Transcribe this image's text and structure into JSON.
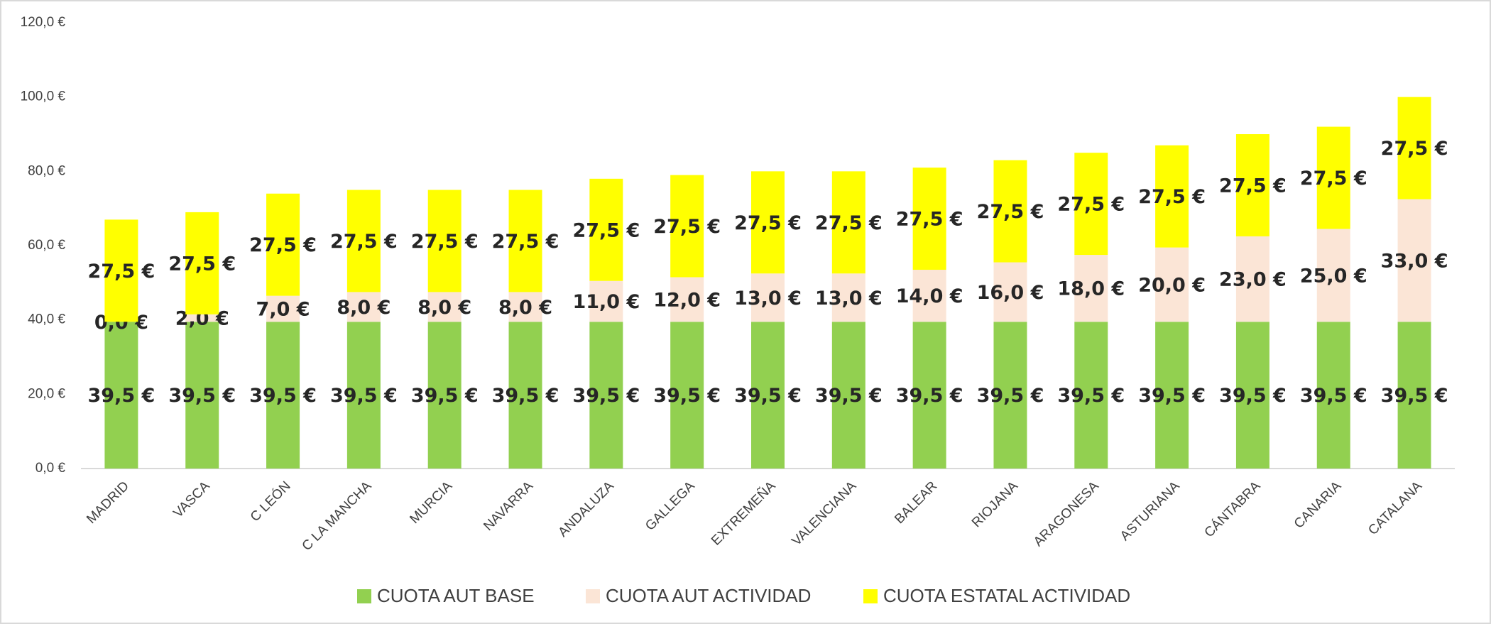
{
  "chart_data": {
    "type": "stacked_bar",
    "categories": [
      "MADRID",
      "VASCA",
      "C LEÓN",
      "C LA MANCHA",
      "MURCIA",
      "NAVARRA",
      "ANDALUZA",
      "GALLEGA",
      "EXTREMEÑA",
      "VALENCIANA",
      "BALEAR",
      "RIOJANA",
      "ARAGONESA",
      "ASTURIANA",
      "CÁNTABRA",
      "CANARIA",
      "CATALANA"
    ],
    "series": [
      {
        "name": "CUOTA AUT BASE",
        "color": "#92d050",
        "values": [
          39.5,
          39.5,
          39.5,
          39.5,
          39.5,
          39.5,
          39.5,
          39.5,
          39.5,
          39.5,
          39.5,
          39.5,
          39.5,
          39.5,
          39.5,
          39.5,
          39.5
        ],
        "value_labels": [
          "39,5 €",
          "39,5 €",
          "39,5 €",
          "39,5 €",
          "39,5 €",
          "39,5 €",
          "39,5 €",
          "39,5 €",
          "39,5 €",
          "39,5 €",
          "39,5 €",
          "39,5 €",
          "39,5 €",
          "39,5 €",
          "39,5 €",
          "39,5 €",
          "39,5 €"
        ]
      },
      {
        "name": "CUOTA AUT ACTIVIDAD",
        "color": "#fbe5d6",
        "values": [
          0,
          2,
          7,
          8,
          8,
          8,
          11,
          12,
          13,
          13,
          14,
          16,
          18,
          20,
          23,
          25,
          33
        ],
        "value_labels": [
          "0,0 €",
          "2,0 €",
          "7,0 €",
          "8,0 €",
          "8,0 €",
          "8,0 €",
          "11,0 €",
          "12,0 €",
          "13,0 €",
          "13,0 €",
          "14,0 €",
          "16,0 €",
          "18,0 €",
          "20,0 €",
          "23,0 €",
          "25,0 €",
          "33,0 €"
        ]
      },
      {
        "name": "CUOTA ESTATAL ACTIVIDAD",
        "color": "#ffff00",
        "values": [
          27.5,
          27.5,
          27.5,
          27.5,
          27.5,
          27.5,
          27.5,
          27.5,
          27.5,
          27.5,
          27.5,
          27.5,
          27.5,
          27.5,
          27.5,
          27.5,
          27.5
        ],
        "value_labels": [
          "27,5 €",
          "27,5 €",
          "27,5 €",
          "27,5 €",
          "27,5 €",
          "27,5 €",
          "27,5 €",
          "27,5 €",
          "27,5 €",
          "27,5 €",
          "27,5 €",
          "27,5 €",
          "27,5 €",
          "27,5 €",
          "27,5 €",
          "27,5 €",
          "27,5 €"
        ]
      }
    ],
    "ylim": [
      0,
      120
    ],
    "yticks": [
      {
        "value": 0,
        "label": "0,0 €"
      },
      {
        "value": 20,
        "label": "20,0 €"
      },
      {
        "value": 40,
        "label": "40,0 €"
      },
      {
        "value": 60,
        "label": "60,0 €"
      },
      {
        "value": 80,
        "label": "80,0 €"
      },
      {
        "value": 100,
        "label": "100,0 €"
      },
      {
        "value": 120,
        "label": "120,0 €"
      }
    ],
    "grid": false,
    "legend": "bottom"
  }
}
